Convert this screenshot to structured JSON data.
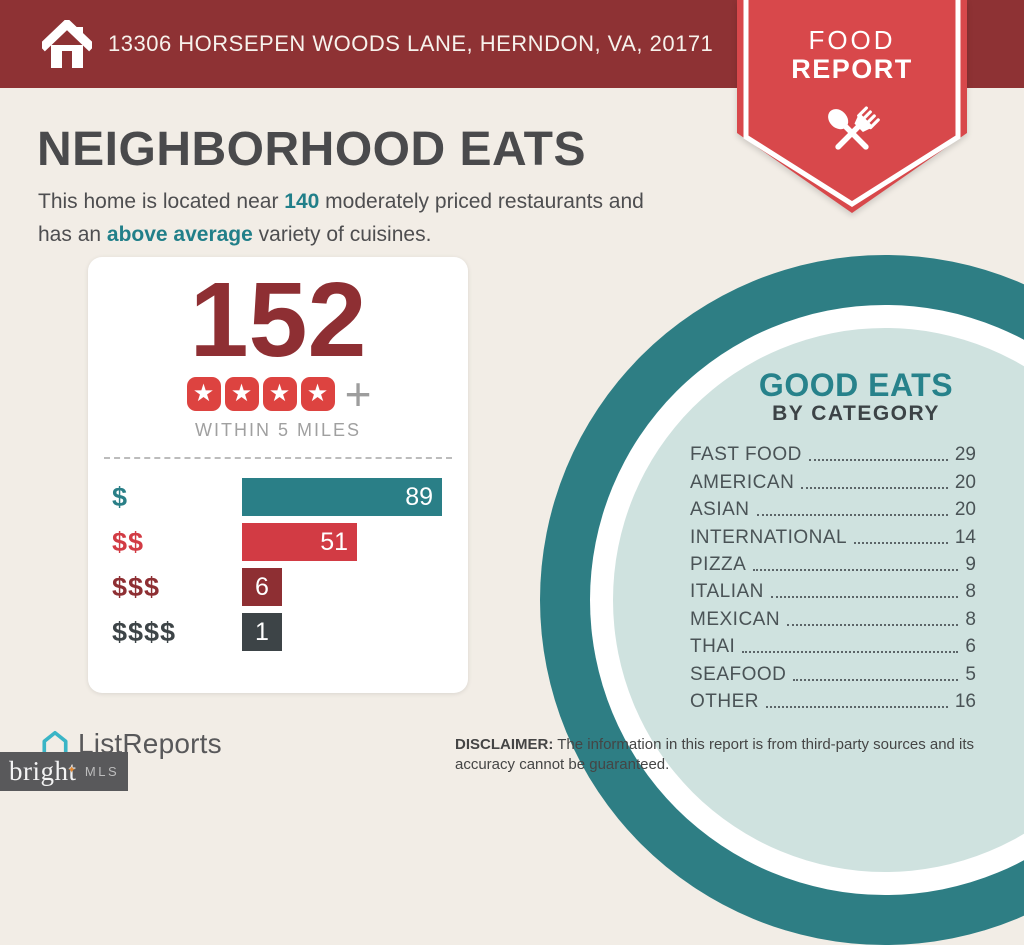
{
  "header": {
    "address": "13306 HORSEPEN WOODS LANE, HERNDON, VA, 20171"
  },
  "ribbon": {
    "line1": "FOOD",
    "line2": "REPORT"
  },
  "title": "NEIGHBORHOOD EATS",
  "intro": {
    "pre": "This home is located near ",
    "count": "140",
    "mid": " moderately priced restaurants and",
    "line2_pre": "has an ",
    "highlight": "above average",
    "post": " variety of cuisines."
  },
  "summary_card": {
    "total": "152",
    "stars": 4,
    "radius_label": "WITHIN 5 MILES",
    "price_bars": [
      {
        "label": "$",
        "value": 89,
        "color": "#2a7f87"
      },
      {
        "label": "$$",
        "value": 51,
        "color": "#d23b44"
      },
      {
        "label": "$$$",
        "value": 6,
        "color": "#8e2f33"
      },
      {
        "label": "$$$$",
        "value": 1,
        "color": "#3d4447"
      }
    ]
  },
  "good_eats": {
    "title": "GOOD EATS",
    "subtitle": "BY CATEGORY",
    "categories": [
      {
        "label": "FAST FOOD",
        "value": 29
      },
      {
        "label": "AMERICAN",
        "value": 20
      },
      {
        "label": "ASIAN",
        "value": 20
      },
      {
        "label": "INTERNATIONAL",
        "value": 14
      },
      {
        "label": "PIZZA",
        "value": 9
      },
      {
        "label": "ITALIAN",
        "value": 8
      },
      {
        "label": "MEXICAN",
        "value": 8
      },
      {
        "label": "THAI",
        "value": 6
      },
      {
        "label": "SEAFOOD",
        "value": 5
      },
      {
        "label": "OTHER",
        "value": 16
      }
    ]
  },
  "footer": {
    "brand": "ListReports",
    "mls": {
      "name": "bright",
      "suffix": "MLS"
    },
    "disclaimer_label": "DISCLAIMER:",
    "disclaimer_text": " The information in this report is from third-party sources and its accuracy cannot be guaranteed."
  },
  "icons": {
    "home": "home-icon",
    "spoon_fork": "spoon-fork-icon",
    "star": "★",
    "plus": "+",
    "listreports_house": "house-outline-icon",
    "bright_star": "✦"
  },
  "colors": {
    "header_maroon": "#8e3234",
    "ribbon_red": "#d8484b",
    "accent_teal": "#217f89",
    "ring_teal": "#2e7e84",
    "pale_teal": "#cfe2df",
    "background_cream": "#f2ede6",
    "big_number_maroon": "#8e2f33",
    "star_red": "#dd4340"
  },
  "chart_data": [
    {
      "type": "bar",
      "orientation": "horizontal",
      "categories": [
        "$",
        "$$",
        "$$$",
        "$$$$"
      ],
      "values": [
        89,
        51,
        6,
        1
      ],
      "title": "152 restaurants rated 4 stars + within 5 miles, by price tier",
      "xlabel": "",
      "ylabel": "",
      "xlim": [
        0,
        100
      ],
      "bar_colors": [
        "#2a7f87",
        "#d23b44",
        "#8e2f33",
        "#3d4447"
      ],
      "data_labels": true,
      "grid": false
    },
    {
      "type": "table",
      "title": "GOOD EATS BY CATEGORY",
      "categories": [
        "FAST FOOD",
        "AMERICAN",
        "ASIAN",
        "INTERNATIONAL",
        "PIZZA",
        "ITALIAN",
        "MEXICAN",
        "THAI",
        "SEAFOOD",
        "OTHER"
      ],
      "values": [
        29,
        20,
        20,
        14,
        9,
        8,
        8,
        6,
        5,
        16
      ]
    }
  ]
}
